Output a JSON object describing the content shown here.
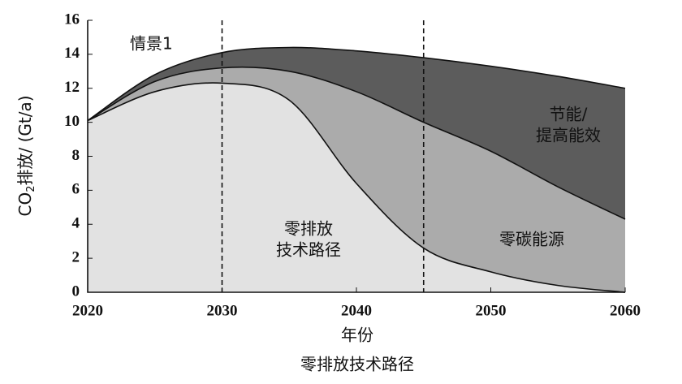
{
  "chart_data": {
    "type": "area",
    "title": "情景1",
    "xlabel": "年份",
    "ylabel": [
      "CO",
      "2",
      "排放/ (Gt/a)"
    ],
    "caption": "零排放技术路径",
    "x": [
      2020,
      2025,
      2030,
      2035,
      2040,
      2045,
      2050,
      2055,
      2060
    ],
    "series": [
      {
        "name": [
          "节能/",
          "提高能效"
        ],
        "color": "#5c5c5c",
        "values": [
          10.1,
          12.8,
          14.1,
          14.4,
          14.2,
          13.8,
          13.3,
          12.7,
          12.0
        ]
      },
      {
        "name": [
          "零碳能源"
        ],
        "color": "#ababab",
        "values": [
          10.1,
          12.4,
          13.2,
          13.0,
          11.8,
          10.0,
          8.3,
          6.2,
          4.3
        ]
      },
      {
        "name": [
          "零排放",
          "技术路径"
        ],
        "color": "#e2e2e2",
        "values": [
          10.1,
          11.8,
          12.3,
          11.3,
          6.4,
          2.6,
          1.2,
          0.4,
          0.0
        ]
      }
    ],
    "vlines": [
      2030,
      2045
    ],
    "xlim": [
      2020,
      2060
    ],
    "xticks": [
      2020,
      2030,
      2040,
      2050,
      2060
    ],
    "ylim": [
      0,
      16
    ],
    "yticks": [
      0,
      2,
      4,
      6,
      8,
      10,
      12,
      14,
      16
    ]
  }
}
